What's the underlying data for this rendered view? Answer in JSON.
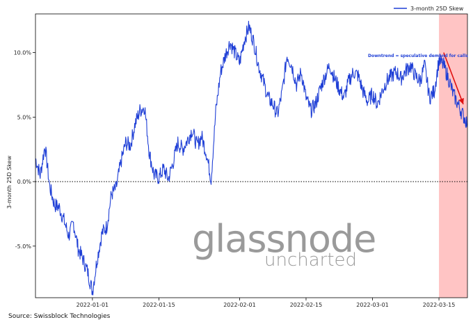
{
  "chart_data": {
    "type": "line",
    "title": "",
    "xlabel": "",
    "ylabel": "3-month 25D Skew",
    "x_range": [
      "2021-12-20",
      "2022-03-21"
    ],
    "ylim": [
      -0.09,
      0.13
    ],
    "x_ticks": [
      "2022-01-01",
      "2022-01-15",
      "2022-02-01",
      "2022-02-15",
      "2022-03-01",
      "2022-03-15"
    ],
    "y_ticks": [
      {
        "value": -0.05,
        "label": "-5.0%"
      },
      {
        "value": 0.0,
        "label": "0.0%"
      },
      {
        "value": 0.05,
        "label": "5.0%"
      },
      {
        "value": 0.1,
        "label": "10.0%"
      }
    ],
    "legend_position": "top-right",
    "series": [
      {
        "name": "3-month 25D Skew",
        "color": "#1f3fd6",
        "points": [
          [
            "2021-12-20",
            0.018
          ],
          [
            "2021-12-21",
            0.005
          ],
          [
            "2021-12-22",
            0.028
          ],
          [
            "2021-12-23",
            -0.004
          ],
          [
            "2021-12-24",
            -0.018
          ],
          [
            "2021-12-25",
            -0.02
          ],
          [
            "2021-12-26",
            -0.03
          ],
          [
            "2021-12-27",
            -0.042
          ],
          [
            "2021-12-28",
            -0.032
          ],
          [
            "2021-12-29",
            -0.052
          ],
          [
            "2021-12-30",
            -0.06
          ],
          [
            "2021-12-31",
            -0.07
          ],
          [
            "2022-01-01",
            -0.085
          ],
          [
            "2022-01-02",
            -0.06
          ],
          [
            "2022-01-03",
            -0.04
          ],
          [
            "2022-01-04",
            -0.035
          ],
          [
            "2022-01-05",
            -0.01
          ],
          [
            "2022-01-06",
            -0.005
          ],
          [
            "2022-01-07",
            0.015
          ],
          [
            "2022-01-08",
            0.03
          ],
          [
            "2022-01-09",
            0.028
          ],
          [
            "2022-01-10",
            0.045
          ],
          [
            "2022-01-11",
            0.055
          ],
          [
            "2022-01-12",
            0.058
          ],
          [
            "2022-01-13",
            0.022
          ],
          [
            "2022-01-14",
            0.005
          ],
          [
            "2022-01-15",
            0.003
          ],
          [
            "2022-01-16",
            0.01
          ],
          [
            "2022-01-17",
            0.002
          ],
          [
            "2022-01-18",
            0.015
          ],
          [
            "2022-01-19",
            0.03
          ],
          [
            "2022-01-20",
            0.025
          ],
          [
            "2022-01-21",
            0.032
          ],
          [
            "2022-01-22",
            0.04
          ],
          [
            "2022-01-23",
            0.028
          ],
          [
            "2022-01-24",
            0.035
          ],
          [
            "2022-01-25",
            0.022
          ],
          [
            "2022-01-26",
            0.002
          ],
          [
            "2022-01-27",
            0.055
          ],
          [
            "2022-01-28",
            0.085
          ],
          [
            "2022-01-29",
            0.098
          ],
          [
            "2022-01-30",
            0.108
          ],
          [
            "2022-01-31",
            0.1
          ],
          [
            "2022-02-01",
            0.092
          ],
          [
            "2022-02-02",
            0.11
          ],
          [
            "2022-02-03",
            0.12
          ],
          [
            "2022-02-04",
            0.108
          ],
          [
            "2022-02-05",
            0.09
          ],
          [
            "2022-02-06",
            0.078
          ],
          [
            "2022-02-07",
            0.065
          ],
          [
            "2022-02-08",
            0.06
          ],
          [
            "2022-02-09",
            0.052
          ],
          [
            "2022-02-10",
            0.07
          ],
          [
            "2022-02-11",
            0.098
          ],
          [
            "2022-02-12",
            0.09
          ],
          [
            "2022-02-13",
            0.075
          ],
          [
            "2022-02-14",
            0.085
          ],
          [
            "2022-02-15",
            0.065
          ],
          [
            "2022-02-16",
            0.055
          ],
          [
            "2022-02-17",
            0.06
          ],
          [
            "2022-02-18",
            0.072
          ],
          [
            "2022-02-19",
            0.082
          ],
          [
            "2022-02-20",
            0.09
          ],
          [
            "2022-02-21",
            0.08
          ],
          [
            "2022-02-22",
            0.072
          ],
          [
            "2022-02-23",
            0.065
          ],
          [
            "2022-02-24",
            0.078
          ],
          [
            "2022-02-25",
            0.085
          ],
          [
            "2022-02-26",
            0.082
          ],
          [
            "2022-02-27",
            0.07
          ],
          [
            "2022-02-28",
            0.062
          ],
          [
            "2022-03-01",
            0.068
          ],
          [
            "2022-03-02",
            0.06
          ],
          [
            "2022-03-03",
            0.07
          ],
          [
            "2022-03-04",
            0.078
          ],
          [
            "2022-03-05",
            0.082
          ],
          [
            "2022-03-06",
            0.085
          ],
          [
            "2022-03-07",
            0.08
          ],
          [
            "2022-03-08",
            0.086
          ],
          [
            "2022-03-09",
            0.09
          ],
          [
            "2022-03-10",
            0.082
          ],
          [
            "2022-03-11",
            0.078
          ],
          [
            "2022-03-12",
            0.09
          ],
          [
            "2022-03-13",
            0.065
          ],
          [
            "2022-03-14",
            0.07
          ],
          [
            "2022-03-15",
            0.094
          ],
          [
            "2022-03-16",
            0.09
          ],
          [
            "2022-03-17",
            0.08
          ],
          [
            "2022-03-18",
            0.068
          ],
          [
            "2022-03-19",
            0.06
          ],
          [
            "2022-03-20",
            0.052
          ],
          [
            "2022-03-21",
            0.045
          ]
        ]
      }
    ],
    "highlight_region": {
      "x_start": "2022-03-15",
      "x_end": "2022-03-21",
      "color": "#ffc4c4"
    },
    "zero_line": {
      "y": 0.0,
      "style": "dotted"
    },
    "annotation": {
      "text": "Downtrend = speculative demand for calls",
      "arrow_from": [
        "2022-03-16",
        0.1
      ],
      "arrow_to": [
        "2022-03-21",
        0.06
      ],
      "text_color": "#1f3fd6",
      "arrow_color": "#e01010"
    }
  },
  "watermark": {
    "main": "glassnode",
    "sub": "uncharted"
  },
  "source": "Source: Swissblock Technologies"
}
